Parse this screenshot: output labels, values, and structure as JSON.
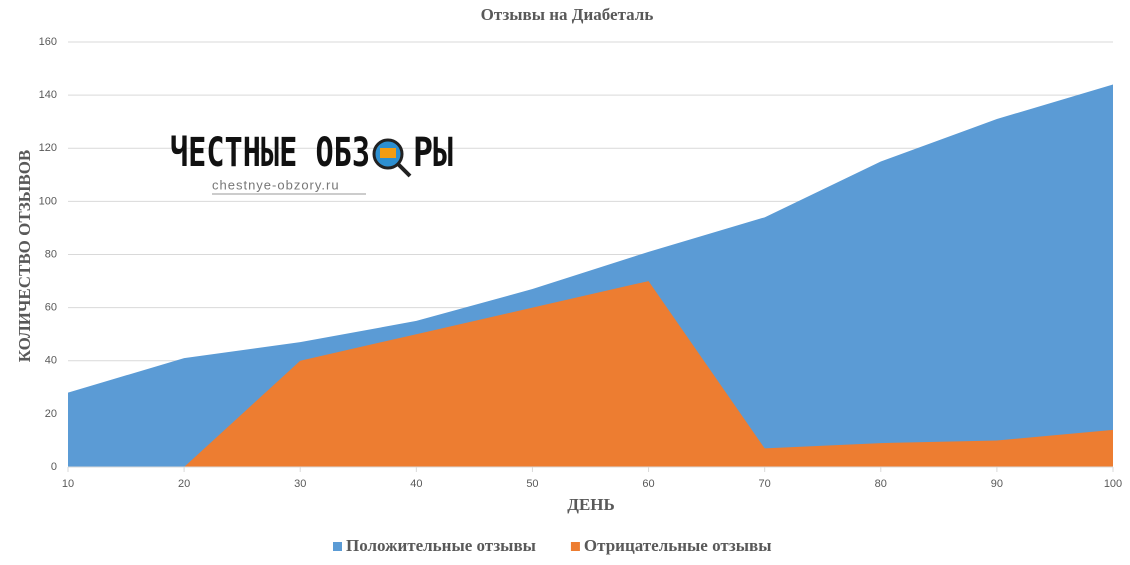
{
  "chart_data": {
    "type": "area",
    "title": "Отзывы на Диабеталь",
    "x_label": "ДЕНЬ",
    "y_label": "КОЛИЧЕСТВО ОТЗЫВОВ",
    "x": [
      10,
      20,
      30,
      40,
      50,
      60,
      70,
      80,
      90,
      100
    ],
    "series": [
      {
        "name": "Положительные отзывы",
        "color": "#5b9bd5",
        "values": [
          28,
          41,
          47,
          55,
          67,
          81,
          94,
          115,
          131,
          144
        ]
      },
      {
        "name": "Отрицательные отзывы",
        "color": "#ed7d31",
        "values": [
          null,
          0,
          40,
          50,
          60,
          70,
          7,
          9,
          10,
          14
        ]
      }
    ],
    "xlim": [
      10,
      100
    ],
    "xticks": [
      10,
      20,
      30,
      40,
      50,
      60,
      70,
      80,
      90,
      100
    ],
    "ylim": [
      0,
      160
    ],
    "yticks": [
      0,
      20,
      40,
      60,
      80,
      100,
      120,
      140,
      160
    ],
    "grid": true,
    "legend": "bottom",
    "watermark_title": "ЧЕСТНЫЕ ОБЗ",
    "watermark_title_end": "РЫ",
    "watermark_url": "chestnye-obzory.ru"
  }
}
